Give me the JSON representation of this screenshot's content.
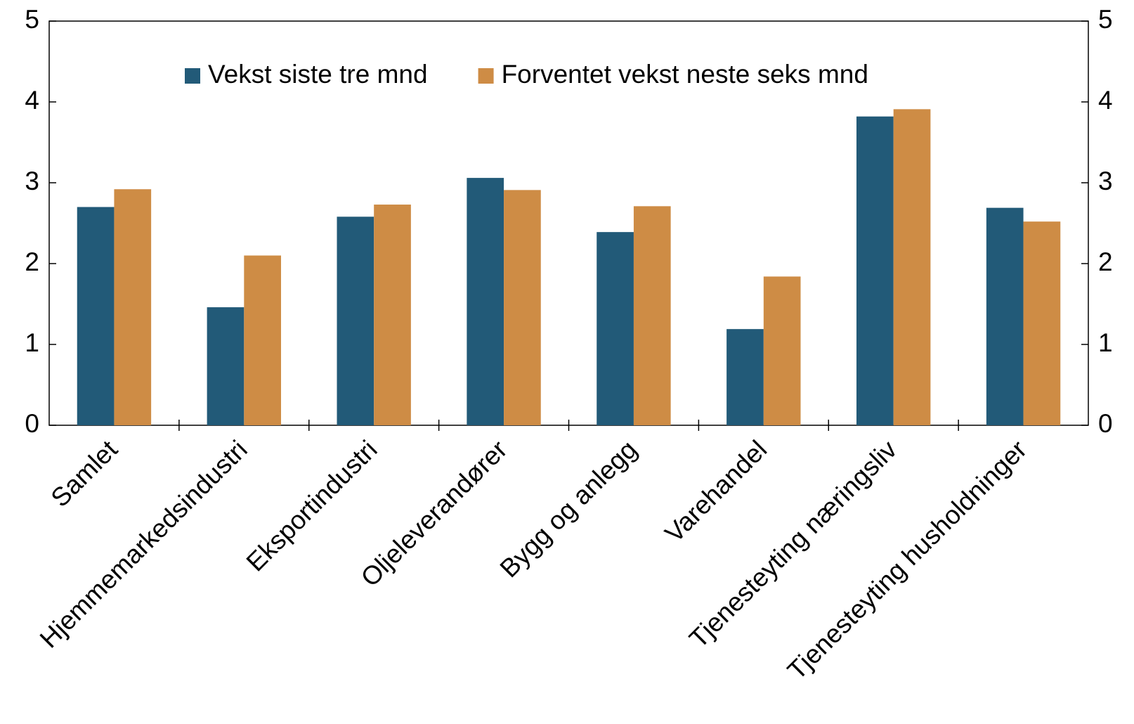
{
  "chart_data": {
    "type": "bar",
    "categories": [
      "Samlet",
      "Hjemmemarkedsindustri",
      "Eksportindustri",
      "Oljeleverandører",
      "Bygg og anlegg",
      "Varehandel",
      "Tjenesteyting næringsliv",
      "Tjenesteyting husholdninger"
    ],
    "series": [
      {
        "name": "Vekst siste tre mnd",
        "color": "#225a78",
        "values": [
          2.7,
          1.46,
          2.58,
          3.06,
          2.39,
          1.19,
          3.82,
          2.69
        ]
      },
      {
        "name": "Forventet vekst neste seks mnd",
        "color": "#ce8c45",
        "values": [
          2.92,
          2.1,
          2.73,
          2.91,
          2.71,
          1.84,
          3.91,
          2.52
        ]
      }
    ],
    "ylim": [
      0,
      5
    ],
    "yticks": [
      0,
      1,
      2,
      3,
      4,
      5
    ],
    "y2lim": [
      0,
      5
    ],
    "y2ticks": [
      0,
      1,
      2,
      3,
      4,
      5
    ]
  }
}
